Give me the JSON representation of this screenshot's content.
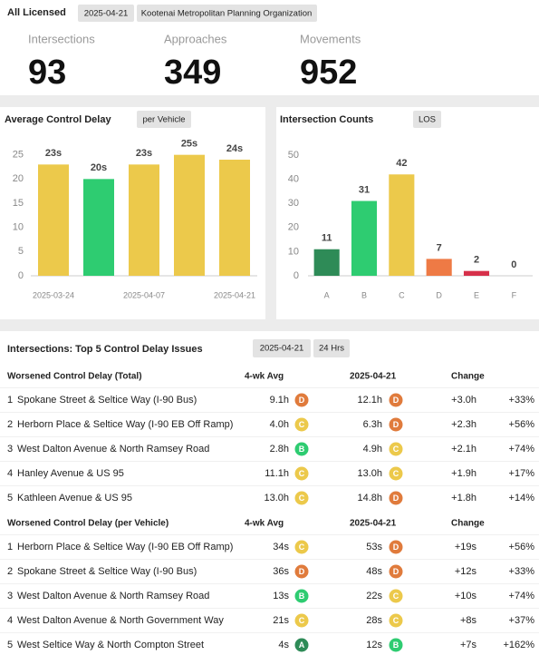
{
  "header": {
    "title": "All Licensed",
    "date": "2025-04-21",
    "org": "Kootenai Metropolitan Planning Organization"
  },
  "stats": [
    {
      "label": "Intersections",
      "value": 93
    },
    {
      "label": "Approaches",
      "value": 349
    },
    {
      "label": "Movements",
      "value": 952
    }
  ],
  "chart_data": [
    {
      "type": "bar",
      "title": "Average Control Delay",
      "subtitle": "per Vehicle",
      "categories": [
        "2025-03-24",
        null,
        "2025-04-07",
        null,
        "2025-04-21"
      ],
      "values": [
        23,
        20,
        23,
        25,
        24
      ],
      "value_labels": [
        "23s",
        "20s",
        "23s",
        "25s",
        "24s"
      ],
      "colors": [
        "#ecc94b",
        "#2ecc71",
        "#ecc94b",
        "#ecc94b",
        "#ecc94b"
      ],
      "ylim": [
        0,
        27
      ],
      "yticks": [
        0,
        5,
        10,
        15,
        20,
        25
      ]
    },
    {
      "type": "bar",
      "title": "Intersection Counts",
      "subtitle": "LOS",
      "categories": [
        "A",
        "B",
        "C",
        "D",
        "E",
        "F"
      ],
      "values": [
        11,
        31,
        42,
        7,
        2,
        0
      ],
      "colors": [
        "#2e8b57",
        "#2ecc71",
        "#ecc94b",
        "#ee7a45",
        "#d6304a",
        "#cccccc"
      ],
      "ylim": [
        0,
        53
      ],
      "yticks": [
        0,
        10,
        20,
        30,
        40,
        50
      ]
    }
  ],
  "los_colors": {
    "A": "#2e8b57",
    "B": "#2ecc71",
    "C": "#ecc94b",
    "D": "#e07b3c"
  },
  "table": {
    "title": "Intersections: Top 5 Control Delay Issues",
    "chips": [
      "2025-04-21",
      "24 Hrs"
    ],
    "sections": [
      {
        "columns": [
          "Worsened Control Delay (Total)",
          "4-wk Avg",
          "2025-04-21",
          "Change"
        ],
        "rows": [
          {
            "rank": "1",
            "name": "Spokane Street & Seltice Way (I-90 Bus)",
            "avg": "9.1h",
            "avg_los": "D",
            "current": "12.1h",
            "current_los": "D",
            "change": "+3.0h",
            "pct": "+33%"
          },
          {
            "rank": "2",
            "name": "Herborn Place & Seltice Way (I-90 EB Off Ramp)",
            "avg": "4.0h",
            "avg_los": "C",
            "current": "6.3h",
            "current_los": "D",
            "change": "+2.3h",
            "pct": "+56%"
          },
          {
            "rank": "3",
            "name": "West Dalton Avenue & North Ramsey Road",
            "avg": "2.8h",
            "avg_los": "B",
            "current": "4.9h",
            "current_los": "C",
            "change": "+2.1h",
            "pct": "+74%"
          },
          {
            "rank": "4",
            "name": "Hanley Avenue & US 95",
            "avg": "11.1h",
            "avg_los": "C",
            "current": "13.0h",
            "current_los": "C",
            "change": "+1.9h",
            "pct": "+17%"
          },
          {
            "rank": "5",
            "name": "Kathleen Avenue & US 95",
            "avg": "13.0h",
            "avg_los": "C",
            "current": "14.8h",
            "current_los": "D",
            "change": "+1.8h",
            "pct": "+14%"
          }
        ]
      },
      {
        "columns": [
          "Worsened Control Delay (per Vehicle)",
          "4-wk Avg",
          "2025-04-21",
          "Change"
        ],
        "rows": [
          {
            "rank": "1",
            "name": "Herborn Place & Seltice Way (I-90 EB Off Ramp)",
            "avg": "34s",
            "avg_los": "C",
            "current": "53s",
            "current_los": "D",
            "change": "+19s",
            "pct": "+56%"
          },
          {
            "rank": "2",
            "name": "Spokane Street & Seltice Way (I-90 Bus)",
            "avg": "36s",
            "avg_los": "D",
            "current": "48s",
            "current_los": "D",
            "change": "+12s",
            "pct": "+33%"
          },
          {
            "rank": "3",
            "name": "West Dalton Avenue & North Ramsey Road",
            "avg": "13s",
            "avg_los": "B",
            "current": "22s",
            "current_los": "C",
            "change": "+10s",
            "pct": "+74%"
          },
          {
            "rank": "4",
            "name": "West Dalton Avenue & North Government Way",
            "avg": "21s",
            "avg_los": "C",
            "current": "28s",
            "current_los": "C",
            "change": "+8s",
            "pct": "+37%"
          },
          {
            "rank": "5",
            "name": "West Seltice Way & North Compton Street",
            "avg": "4s",
            "avg_los": "A",
            "current": "12s",
            "current_los": "B",
            "change": "+7s",
            "pct": "+162%"
          }
        ]
      }
    ]
  }
}
